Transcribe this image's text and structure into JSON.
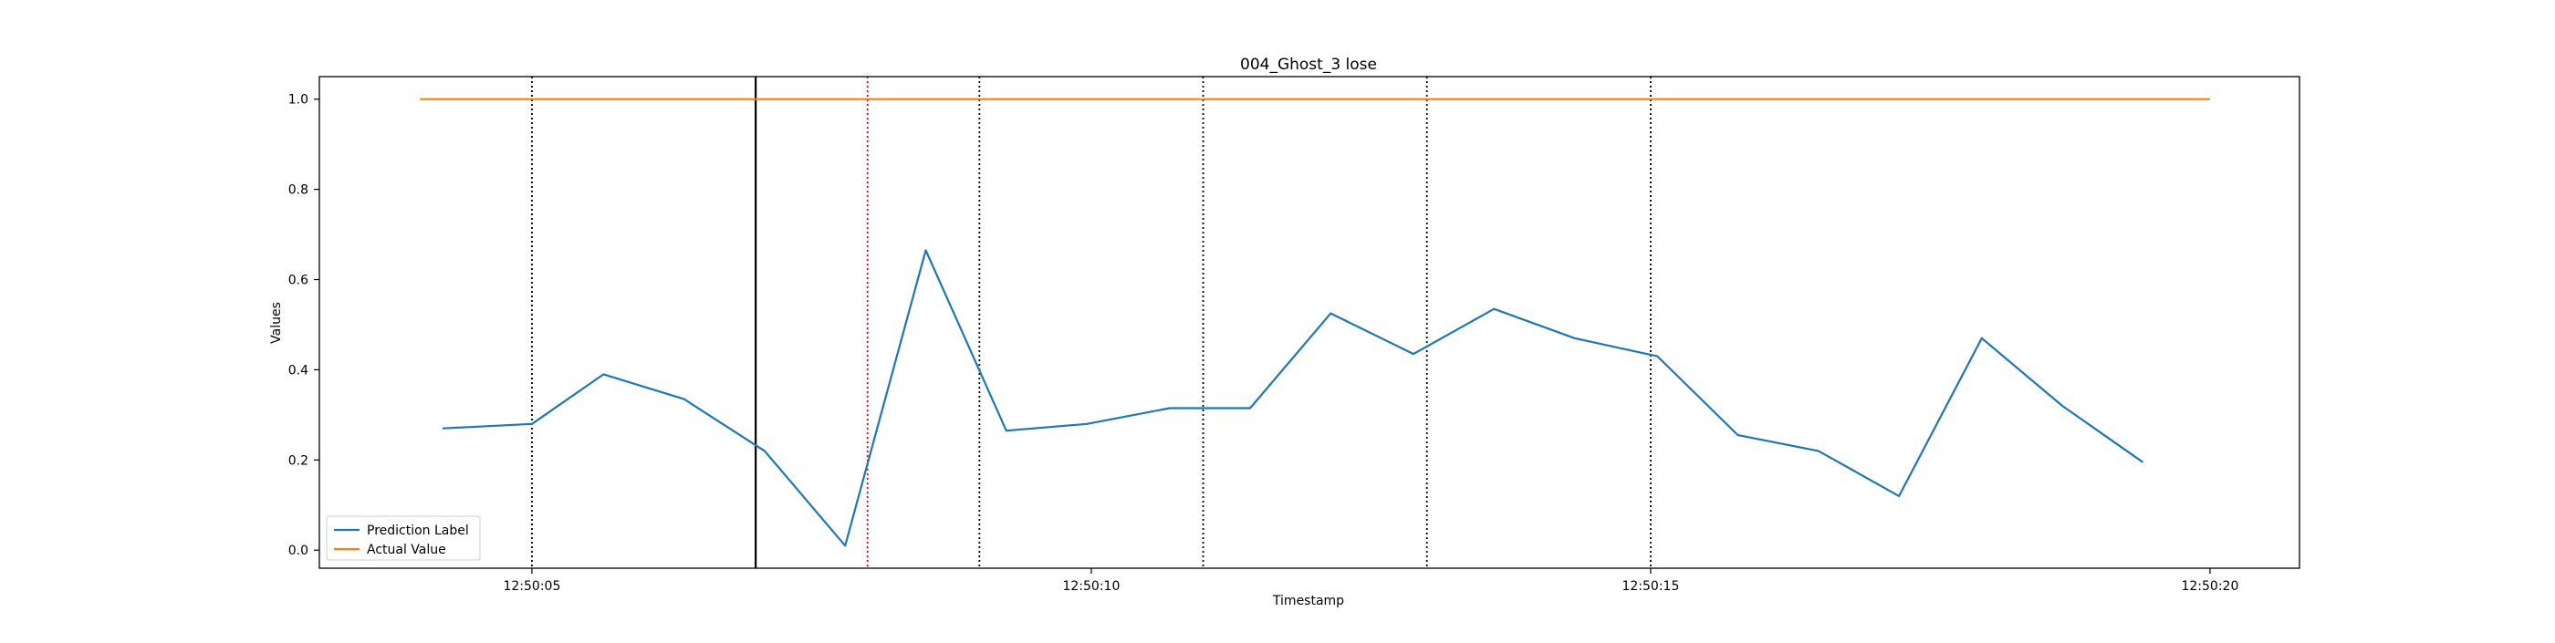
{
  "chart_data": {
    "type": "line",
    "title": "004_Ghost_3 lose",
    "xlabel": "Timestamp",
    "ylabel": "Values",
    "x_axis": {
      "min": "12:50:03.10",
      "max": "12:50:20.80",
      "ticks": [
        "12:50:05",
        "12:50:10",
        "12:50:15",
        "12:50:20"
      ]
    },
    "y_axis": {
      "min": -0.04,
      "max": 1.05,
      "ticks": [
        0.0,
        0.2,
        0.4,
        0.6,
        0.8,
        1.0
      ],
      "tick_labels": [
        "0.0",
        "0.2",
        "0.4",
        "0.6",
        "0.8",
        "1.0"
      ]
    },
    "grid": false,
    "legend": {
      "placement": "lower-left",
      "entries": [
        "Prediction Label",
        "Actual Value"
      ]
    },
    "series": [
      {
        "name": "Prediction Label",
        "color": "#1f77b4",
        "points": [
          {
            "x": "12:50:04.20",
            "y": 0.27
          },
          {
            "x": "12:50:05.00",
            "y": 0.28
          },
          {
            "x": "12:50:05.64",
            "y": 0.39
          },
          {
            "x": "12:50:06.36",
            "y": 0.335
          },
          {
            "x": "12:50:07.08",
            "y": 0.22
          },
          {
            "x": "12:50:07.80",
            "y": 0.01
          },
          {
            "x": "12:50:08.52",
            "y": 0.665
          },
          {
            "x": "12:50:09.24",
            "y": 0.265
          },
          {
            "x": "12:50:09.96",
            "y": 0.28
          },
          {
            "x": "12:50:10.70",
            "y": 0.315
          },
          {
            "x": "12:50:11.42",
            "y": 0.315
          },
          {
            "x": "12:50:12.14",
            "y": 0.525
          },
          {
            "x": "12:50:12.88",
            "y": 0.435
          },
          {
            "x": "12:50:13.60",
            "y": 0.535
          },
          {
            "x": "12:50:14.32",
            "y": 0.47
          },
          {
            "x": "12:50:15.06",
            "y": 0.43
          },
          {
            "x": "12:50:15.78",
            "y": 0.255
          },
          {
            "x": "12:50:16.50",
            "y": 0.22
          },
          {
            "x": "12:50:17.22",
            "y": 0.12
          },
          {
            "x": "12:50:17.96",
            "y": 0.47
          },
          {
            "x": "12:50:18.68",
            "y": 0.32
          },
          {
            "x": "12:50:19.40",
            "y": 0.195
          }
        ]
      },
      {
        "name": "Actual Value",
        "color": "#ff7f0e",
        "points": [
          {
            "x": "12:50:04.00",
            "y": 1.0
          },
          {
            "x": "12:50:20.00",
            "y": 1.0
          }
        ]
      }
    ],
    "vertical_lines": [
      {
        "x": "12:50:05.00",
        "style": "dotted",
        "color": "#000000"
      },
      {
        "x": "12:50:07.00",
        "style": "solid",
        "color": "#000000"
      },
      {
        "x": "12:50:08.00",
        "style": "dotted",
        "color": "#ff0000"
      },
      {
        "x": "12:50:09.00",
        "style": "dotted",
        "color": "#000000"
      },
      {
        "x": "12:50:11.00",
        "style": "dotted",
        "color": "#000000"
      },
      {
        "x": "12:50:13.00",
        "style": "dotted",
        "color": "#000000"
      },
      {
        "x": "12:50:15.00",
        "style": "dotted",
        "color": "#000000"
      }
    ]
  }
}
